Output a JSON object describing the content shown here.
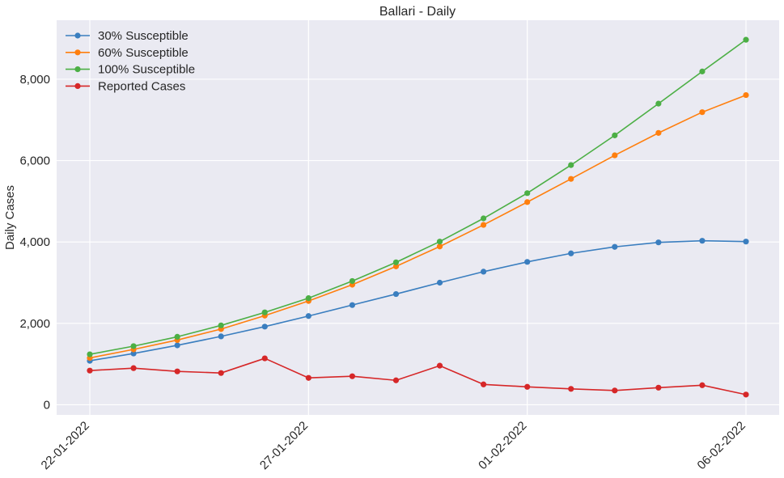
{
  "chart_data": {
    "type": "line",
    "title": "Ballari - Daily",
    "xlabel": "",
    "ylabel": "Daily Cases",
    "ylim": [
      -250,
      9450
    ],
    "yticks": [
      0,
      2000,
      4000,
      6000,
      8000
    ],
    "ytick_labels": [
      "0",
      "2,000",
      "4,000",
      "6,000",
      "8,000"
    ],
    "x": [
      "22-01-2022",
      "23-01-2022",
      "24-01-2022",
      "25-01-2022",
      "26-01-2022",
      "27-01-2022",
      "28-01-2022",
      "29-01-2022",
      "30-01-2022",
      "31-01-2022",
      "01-02-2022",
      "02-02-2022",
      "03-02-2022",
      "04-02-2022",
      "05-02-2022",
      "06-02-2022"
    ],
    "xticks": [
      "22-01-2022",
      "27-01-2022",
      "01-02-2022",
      "06-02-2022"
    ],
    "grid": true,
    "legend_position": "top-left",
    "series": [
      {
        "name": "30% Susceptible",
        "color": "#3a7ebf",
        "values": [
          1080,
          1260,
          1460,
          1680,
          1920,
          2180,
          2450,
          2720,
          3000,
          3270,
          3510,
          3720,
          3880,
          3990,
          4030,
          4010
        ]
      },
      {
        "name": "60% Susceptible",
        "color": "#ff7f0e",
        "values": [
          1150,
          1360,
          1590,
          1860,
          2190,
          2550,
          2950,
          3400,
          3890,
          4420,
          4980,
          5550,
          6130,
          6680,
          7190,
          7610
        ]
      },
      {
        "name": "100% Susceptible",
        "color": "#4caf45",
        "values": [
          1240,
          1440,
          1670,
          1950,
          2270,
          2620,
          3040,
          3500,
          4010,
          4580,
          5200,
          5890,
          6620,
          7400,
          8190,
          8970
        ]
      },
      {
        "name": "Reported Cases",
        "color": "#d62728",
        "values": [
          840,
          900,
          820,
          780,
          1140,
          660,
          700,
          600,
          960,
          500,
          440,
          390,
          350,
          420,
          480,
          250
        ]
      }
    ]
  }
}
